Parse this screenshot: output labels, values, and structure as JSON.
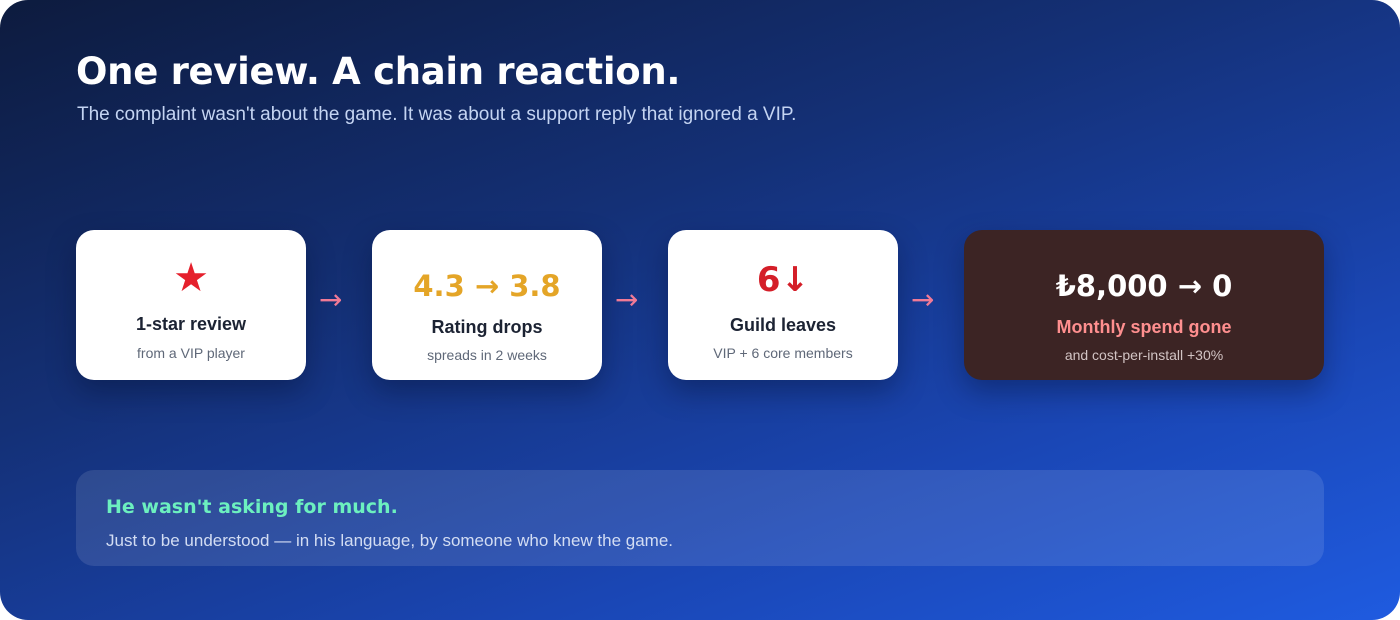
{
  "header": {
    "title": "One review. A chain reaction.",
    "subtitle": "The complaint wasn't about the game. It was about a support reply that ignored a VIP."
  },
  "flow": {
    "arrow_glyph": "→",
    "steps": [
      {
        "big": "★",
        "icon": "star-icon",
        "label": "1-star review",
        "sub": "from a VIP player"
      },
      {
        "big": "4.3 → 3.8",
        "label": "Rating drops",
        "sub": "spreads in 2 weeks"
      },
      {
        "big": "6↓",
        "label": "Guild leaves",
        "sub": "VIP + 6 core members"
      },
      {
        "big": "₺8,000 → 0",
        "label": "Monthly spend gone",
        "sub": "and cost-per-install +30%"
      }
    ]
  },
  "note": {
    "heading": "He wasn't asking for much.",
    "body": "Just to be understood — in his language, by someone who knew the game."
  },
  "colors": {
    "background_start": "#0d1b3e",
    "background_end": "#1f5be0",
    "star_red": "#e5202c",
    "rating_amber": "#e4a527",
    "guild_red": "#d41e28",
    "loss_card_bg": "#3c2424",
    "loss_label": "#ff8f8f",
    "arrow_pink": "#f07a96",
    "note_heading_green": "#6cf0bf"
  }
}
